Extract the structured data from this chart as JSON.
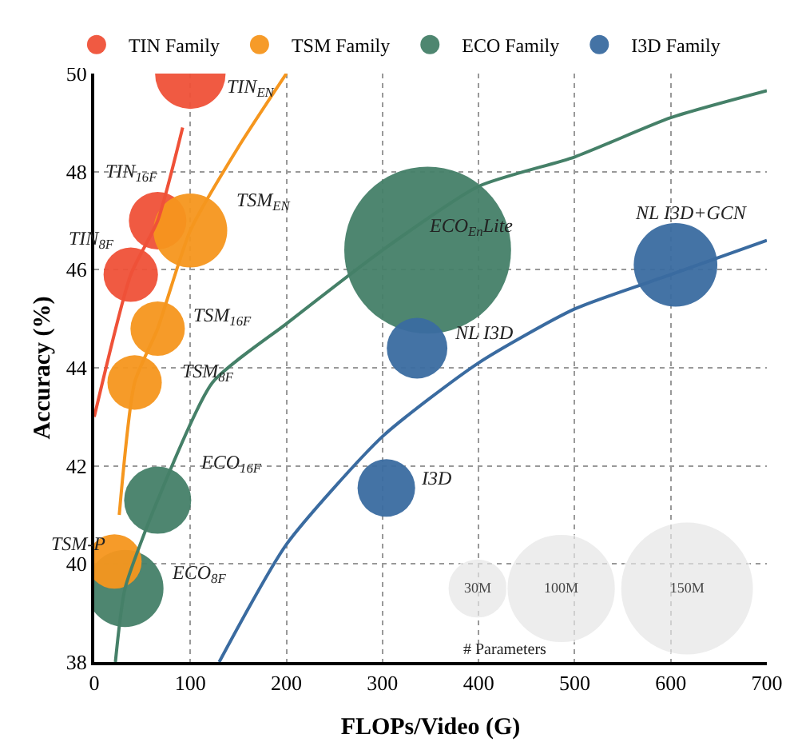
{
  "chart_data": {
    "type": "bubble",
    "xlabel": "FLOPs/Video (G)",
    "ylabel": "Accuracy (%)",
    "xlim": [
      0,
      700
    ],
    "xticks": [
      0,
      100,
      200,
      300,
      400,
      500,
      600,
      700
    ],
    "ylim": [
      38,
      50
    ],
    "yticks": [
      38,
      40,
      42,
      44,
      46,
      48,
      50
    ],
    "grid": true,
    "legend": "top",
    "marker": "circle",
    "size_legend": [
      {
        "value": 30,
        "label": "30M"
      },
      {
        "value": 100,
        "label": "100M"
      },
      {
        "value": 150,
        "label": "150M"
      }
    ],
    "series": [
      {
        "name": "TIN Family",
        "color": "#ef5138",
        "x": [
          100,
          66,
          38
        ],
        "values": [
          50.0,
          47.0,
          45.9
        ],
        "sizes": [
          42,
          28,
          25
        ]
      },
      {
        "name": "TSM Family",
        "color": "#f5961e",
        "x": [
          100,
          66,
          42,
          21
        ],
        "values": [
          46.8,
          44.8,
          43.7,
          40.05
        ],
        "sizes": [
          46,
          25,
          25,
          25
        ]
      },
      {
        "name": "ECO Family",
        "color": "#458068",
        "x": [
          66,
          32,
          347
        ],
        "values": [
          41.3,
          39.5,
          46.4
        ],
        "sizes": [
          38,
          50,
          235
        ]
      },
      {
        "name": "I3D Family",
        "color": "#3a6ba0",
        "x": [
          336,
          304,
          605
        ],
        "values": [
          44.4,
          41.55,
          46.1
        ],
        "sizes": [
          31,
          28,
          59
        ]
      },
      {
        "type": "line",
        "marker": "none",
        "color": "#ef5138",
        "x": [
          0,
          38,
          66,
          92
        ],
        "values": [
          43.0,
          45.9,
          47.0,
          48.9
        ]
      },
      {
        "type": "line",
        "marker": "none",
        "color": "#f5961e",
        "x": [
          26,
          42,
          66,
          100,
          150,
          200
        ],
        "values": [
          41.0,
          43.7,
          44.8,
          46.8,
          48.5,
          50.0
        ]
      },
      {
        "type": "line",
        "marker": "none",
        "color": "#458068",
        "x": [
          22,
          32,
          66,
          123,
          200,
          300,
          400,
          500,
          600,
          700
        ],
        "values": [
          38.0,
          39.5,
          41.3,
          43.7,
          44.9,
          46.4,
          47.7,
          48.3,
          49.1,
          49.65
        ]
      },
      {
        "type": "line",
        "marker": "none",
        "color": "#3a6ba0",
        "x": [
          130,
          200,
          300,
          400,
          500,
          600,
          700
        ],
        "values": [
          38.0,
          40.4,
          42.6,
          44.1,
          45.2,
          45.9,
          46.6
        ]
      }
    ],
    "annotations": [
      {
        "text": "TIN$_{EN}$",
        "x": 100,
        "y": 50.0
      },
      {
        "text": "TIN$_{16F}$",
        "x": 66,
        "y": 47.0
      },
      {
        "text": "TIN$_{8F}$",
        "x": 38,
        "y": 45.9
      },
      {
        "text": "TSM$_{EN}$",
        "x": 100,
        "y": 46.8
      },
      {
        "text": "TSM$_{16F}$",
        "x": 66,
        "y": 44.8
      },
      {
        "text": "TSM$_{8F}$",
        "x": 42,
        "y": 43.7
      },
      {
        "text": "TSM-P",
        "x": 21,
        "y": 40.05
      },
      {
        "text": "ECO$_{16F}$",
        "x": 66,
        "y": 41.3
      },
      {
        "text": "ECO$_{8F}$",
        "x": 32,
        "y": 39.5
      },
      {
        "text": "ECO$_{En}$Lite",
        "x": 347,
        "y": 46.4
      },
      {
        "text": "NL I3D",
        "x": 336,
        "y": 44.4
      },
      {
        "text": "I3D",
        "x": 304,
        "y": 41.55
      },
      {
        "text": "NL I3D+GCN",
        "x": 605,
        "y": 46.1
      },
      "# Parameters"
    ]
  }
}
